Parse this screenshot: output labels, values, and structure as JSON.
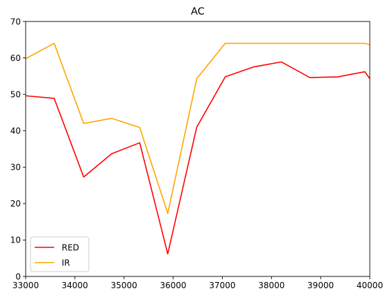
{
  "chart_data": {
    "type": "line",
    "title": "AC",
    "xlabel": "",
    "ylabel": "",
    "xlim": [
      33000,
      40000
    ],
    "ylim": [
      0,
      70
    ],
    "xticks": [
      33000,
      34000,
      35000,
      36000,
      37000,
      38000,
      39000,
      40000
    ],
    "yticks": [
      0,
      10,
      20,
      30,
      40,
      50,
      60,
      70
    ],
    "grid": false,
    "legend_position": "lower-left",
    "series": [
      {
        "name": "RED",
        "color": "#ff0000",
        "x": [
          33000,
          33580,
          34180,
          34750,
          35320,
          35890,
          36480,
          37060,
          37630,
          38200,
          38780,
          39350,
          39900,
          40000
        ],
        "y": [
          49.6,
          48.9,
          27.3,
          33.7,
          36.7,
          6.2,
          41.0,
          54.8,
          57.5,
          58.9,
          54.6,
          54.8,
          56.2,
          54.3
        ]
      },
      {
        "name": "IR",
        "color": "#ffa500",
        "x": [
          33000,
          33580,
          34180,
          34750,
          35320,
          35890,
          36480,
          37060,
          37630,
          38200,
          38780,
          39350,
          39900,
          40000
        ],
        "y": [
          59.8,
          64.0,
          42.0,
          43.4,
          40.9,
          17.3,
          54.3,
          64.0,
          64.0,
          64.0,
          64.0,
          64.0,
          64.0,
          63.6
        ]
      }
    ]
  }
}
